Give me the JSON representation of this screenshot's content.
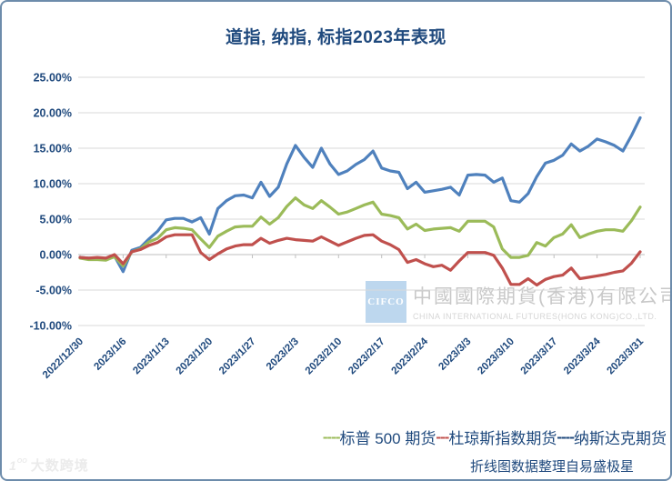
{
  "chart_data": {
    "type": "line",
    "title": "道指, 纳指, 标指2023年表现",
    "grid": "horizontal",
    "legend_position": "bottom",
    "y_axis": {
      "min": -10,
      "max": 25,
      "step": 5,
      "format": "percent",
      "tick_labels": [
        "25.00%",
        "20.00%",
        "15.00%",
        "10.00%",
        "5.00%",
        "0.00%",
        "-5.00%",
        "-10.00%"
      ]
    },
    "x_axis": {
      "tick_labels": [
        "2022/12/30",
        "2023/1/6",
        "2023/1/13",
        "2023/1/20",
        "2023/1/27",
        "2023/2/3",
        "2023/2/10",
        "2023/2/17",
        "2023/2/24",
        "2023/3/3",
        "2023/3/10",
        "2023/3/17",
        "2023/3/24",
        "2023/3/31"
      ]
    },
    "dates": [
      "2022/12/30",
      "2023/1/2",
      "2023/1/3",
      "2023/1/4",
      "2023/1/5",
      "2023/1/6",
      "2023/1/9",
      "2023/1/10",
      "2023/1/11",
      "2023/1/12",
      "2023/1/13",
      "2023/1/16",
      "2023/1/17",
      "2023/1/18",
      "2023/1/19",
      "2023/1/20",
      "2023/1/23",
      "2023/1/24",
      "2023/1/25",
      "2023/1/26",
      "2023/1/27",
      "2023/1/30",
      "2023/1/31",
      "2023/2/1",
      "2023/2/2",
      "2023/2/3",
      "2023/2/6",
      "2023/2/7",
      "2023/2/8",
      "2023/2/9",
      "2023/2/10",
      "2023/2/13",
      "2023/2/14",
      "2023/2/15",
      "2023/2/16",
      "2023/2/17",
      "2023/2/20",
      "2023/2/21",
      "2023/2/22",
      "2023/2/23",
      "2023/2/24",
      "2023/2/27",
      "2023/2/28",
      "2023/3/1",
      "2023/3/2",
      "2023/3/3",
      "2023/3/6",
      "2023/3/7",
      "2023/3/8",
      "2023/3/9",
      "2023/3/10",
      "2023/3/13",
      "2023/3/14",
      "2023/3/15",
      "2023/3/16",
      "2023/3/17",
      "2023/3/20",
      "2023/3/21",
      "2023/3/22",
      "2023/3/23",
      "2023/3/24",
      "2023/3/27",
      "2023/3/28",
      "2023/3/29",
      "2023/3/30",
      "2023/3/31"
    ],
    "series": [
      {
        "name": "标普 500 期货",
        "color": "#9BBB59",
        "legend_dash": "----",
        "legend_dash_color": "#9BBB59",
        "values": [
          -0.5,
          -0.7,
          -0.7,
          -0.8,
          -0.3,
          -1.6,
          0.4,
          0.8,
          1.8,
          2.3,
          3.5,
          3.8,
          3.7,
          3.5,
          2.2,
          1.0,
          2.6,
          3.3,
          3.9,
          4.0,
          4.0,
          5.3,
          4.3,
          5.2,
          6.8,
          8.0,
          7.0,
          6.5,
          7.6,
          6.7,
          5.7,
          6.0,
          6.5,
          7.0,
          7.4,
          5.7,
          5.5,
          5.2,
          3.6,
          4.3,
          3.4,
          3.6,
          3.7,
          3.8,
          3.3,
          4.7,
          4.7,
          4.7,
          3.9,
          0.8,
          -0.4,
          -0.4,
          -0.1,
          1.7,
          1.2,
          2.4,
          2.9,
          4.2,
          2.4,
          2.9,
          3.3,
          3.5,
          3.5,
          3.3,
          4.8,
          6.7
        ]
      },
      {
        "name": "杜琼斯指数期货",
        "color": "#C0504D",
        "legend_dash": "---",
        "legend_dash_color": "#C0504D",
        "values": [
          -0.4,
          -0.5,
          -0.4,
          -0.5,
          0.0,
          -1.3,
          0.4,
          0.7,
          1.3,
          1.7,
          2.5,
          2.8,
          2.8,
          2.8,
          0.3,
          -0.7,
          0.1,
          0.8,
          1.2,
          1.4,
          1.4,
          2.3,
          1.6,
          2.0,
          2.3,
          2.1,
          2.0,
          1.9,
          2.5,
          1.9,
          1.3,
          1.8,
          2.3,
          2.7,
          2.8,
          1.9,
          1.4,
          0.7,
          -1.1,
          -0.7,
          -1.3,
          -1.7,
          -1.5,
          -2.2,
          -0.9,
          0.3,
          0.3,
          0.3,
          -0.1,
          -1.9,
          -4.2,
          -4.2,
          -3.4,
          -4.3,
          -3.5,
          -3.1,
          -2.9,
          -1.9,
          -3.4,
          -3.2,
          -3.0,
          -2.8,
          -2.5,
          -2.3,
          -1.2,
          0.4
        ]
      },
      {
        "name": "纳斯达克期货",
        "color": "#4F81BD",
        "legend_dash": "----",
        "legend_dash_color": "#1F497D",
        "values": [
          -0.4,
          -0.5,
          -0.5,
          -0.6,
          -0.2,
          -2.4,
          0.6,
          1.0,
          2.2,
          3.3,
          4.9,
          5.1,
          5.1,
          4.6,
          5.2,
          2.9,
          6.5,
          7.6,
          8.3,
          8.4,
          8.0,
          10.2,
          8.2,
          9.5,
          12.8,
          15.4,
          13.7,
          12.3,
          15.0,
          12.8,
          11.3,
          11.8,
          12.7,
          13.4,
          14.6,
          12.2,
          11.8,
          11.6,
          9.3,
          10.2,
          8.8,
          9.0,
          9.2,
          9.5,
          8.4,
          11.2,
          11.3,
          11.2,
          10.2,
          10.8,
          7.6,
          7.4,
          8.6,
          11.0,
          12.9,
          13.3,
          14.0,
          15.6,
          14.6,
          15.3,
          16.3,
          15.9,
          15.4,
          14.6,
          16.8,
          19.3
        ]
      }
    ]
  },
  "watermark": {
    "logo": "CIFCO",
    "company_cn": "中國國際期貨(香港)有限公司",
    "company_en": "CHINA INTERNATIONAL FUTURES(HONG KONG)CO.,LTD.",
    "box_color": "#BDD7EE"
  },
  "corner_watermark": {
    "text": "大数跨境"
  },
  "source_note": "折线图数据整理自易盛极星",
  "colors": {
    "title": "#1F497D",
    "axis_labels": "#1F497D",
    "gridline": "#D9D9D9",
    "axis_line": "#BFBFBF",
    "frame_border": "#6D8CAB"
  }
}
